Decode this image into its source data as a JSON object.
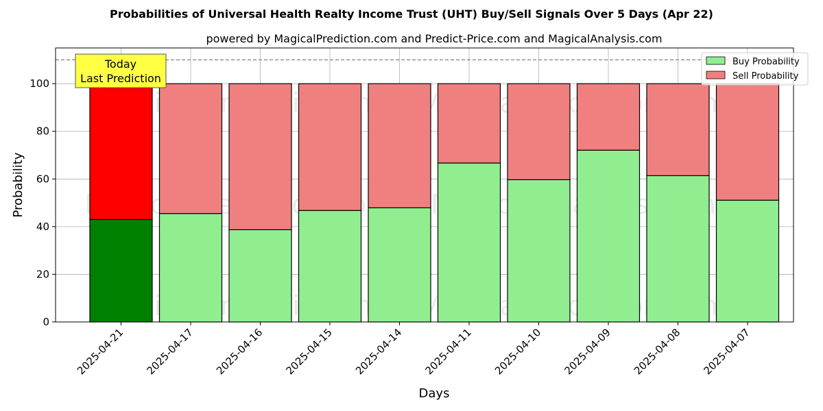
{
  "chart_data": {
    "type": "bar",
    "stacked": true,
    "title": "Probabilities of Universal Health Realty Income Trust (UHT) Buy/Sell Signals Over 5 Days (Apr 22)",
    "subtitle": "powered by MagicalPrediction.com and Predict-Price.com and MagicalAnalysis.com",
    "xlabel": "Days",
    "ylabel": "Probability",
    "ylim": [
      0,
      115
    ],
    "yticks": [
      0,
      20,
      40,
      60,
      80,
      100
    ],
    "categories": [
      "2025-04-21",
      "2025-04-17",
      "2025-04-16",
      "2025-04-15",
      "2025-04-14",
      "2025-04-11",
      "2025-04-10",
      "2025-04-09",
      "2025-04-08",
      "2025-04-07"
    ],
    "series": [
      {
        "name": "Buy Probability",
        "values": [
          43,
          45.5,
          38.7,
          46.8,
          47.9,
          66.7,
          59.7,
          72.1,
          61.4,
          51.1
        ],
        "color": "#90ee90"
      },
      {
        "name": "Sell Probability",
        "values": [
          57,
          54.5,
          61.3,
          53.2,
          52.1,
          33.3,
          40.3,
          27.9,
          38.6,
          48.9
        ],
        "color": "#f08080"
      }
    ],
    "highlight": {
      "index": 0,
      "buy_color": "#008000",
      "sell_color": "#ff0000"
    },
    "reference_line": 110,
    "annotation": [
      "Today",
      "Last Prediction"
    ],
    "annotation_color": "#ffff44",
    "watermarks": [
      "MagicalAnalysis.com",
      "MagicalPrediction.com"
    ],
    "legend_position": "top-right",
    "grid": true
  }
}
